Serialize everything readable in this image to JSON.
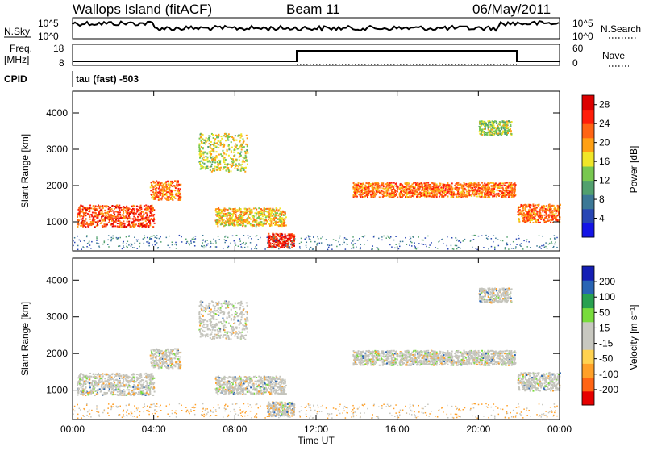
{
  "header": {
    "station": "Wallops Island (fitACF)",
    "beam": "Beam 11",
    "date": "06/May/2011"
  },
  "strips": {
    "nsky_label": "N.Sky",
    "nsearch_label": "N.Search",
    "nsky_ticks": [
      "10^5",
      "10^0"
    ],
    "nsky_tick_labels": [
      "10^5",
      "10^0"
    ],
    "freq_label": "Freq.",
    "freq_unit": "[MHz]",
    "freq_ticks": [
      "18",
      "8"
    ],
    "nave_label": "Nave",
    "nave_ticks": [
      "60",
      "0"
    ],
    "cpid_label": "CPID",
    "cpid_text": "tau (fast) -503"
  },
  "colors": {
    "power": [
      "#1414e6",
      "#2846b4",
      "#3c7896",
      "#52a06e",
      "#78c850",
      "#f0e628",
      "#ffa014",
      "#ff6414",
      "#ff1e0a",
      "#dc0000"
    ],
    "velocity": [
      "#e60000",
      "#ff6414",
      "#ffa028",
      "#ffd250",
      "#c8c8c0",
      "#c8c8c0",
      "#78dc3c",
      "#28a050",
      "#2864b4",
      "#141eb4"
    ],
    "echo_gray": "#c4c4bc"
  },
  "chart_data": [
    {
      "type": "heatmap",
      "title": "Power",
      "xlabel": "Time UT",
      "ylabel": "Slant Range [km]",
      "x_ticks": [
        "00:00",
        "04:00",
        "08:00",
        "12:00",
        "16:00",
        "20:00",
        "00:00"
      ],
      "y_ticks": [
        1000,
        2000,
        3000,
        4000
      ],
      "ylim": [
        200,
        4600
      ],
      "colorbar_label": "Power [dB]",
      "colorbar_ticks": [
        4,
        8,
        12,
        16,
        20,
        24,
        28
      ],
      "clim": [
        0,
        30
      ],
      "echo_bands": [
        {
          "t": [
            0.2,
            4.0
          ],
          "range": [
            880,
            1480
          ],
          "level": 24
        },
        {
          "t": [
            3.8,
            5.3
          ],
          "range": [
            1620,
            2150
          ],
          "level": 22
        },
        {
          "t": [
            6.2,
            8.6
          ],
          "range": [
            2400,
            3450
          ],
          "level": 16
        },
        {
          "t": [
            7.0,
            10.5
          ],
          "range": [
            900,
            1400
          ],
          "level": 18
        },
        {
          "t": [
            9.6,
            10.9
          ],
          "range": [
            300,
            700
          ],
          "level": 26
        },
        {
          "t": [
            13.8,
            21.8
          ],
          "range": [
            1700,
            2100
          ],
          "level": 22
        },
        {
          "t": [
            20.0,
            21.6
          ],
          "range": [
            3400,
            3800
          ],
          "level": 14
        },
        {
          "t": [
            21.9,
            24.0
          ],
          "range": [
            1000,
            1500
          ],
          "level": 22
        }
      ]
    },
    {
      "type": "heatmap",
      "title": "Velocity",
      "xlabel": "Time UT",
      "ylabel": "Slant Range [km]",
      "x_ticks": [
        "00:00",
        "04:00",
        "08:00",
        "12:00",
        "16:00",
        "20:00",
        "00:00"
      ],
      "y_ticks": [
        1000,
        2000,
        3000,
        4000
      ],
      "ylim": [
        200,
        4600
      ],
      "colorbar_label": "Velocity [m s⁻¹]",
      "colorbar_ticks": [
        -200,
        -100,
        -50,
        -15,
        15,
        50,
        100,
        200
      ],
      "clim": [
        -250,
        250
      ]
    }
  ]
}
